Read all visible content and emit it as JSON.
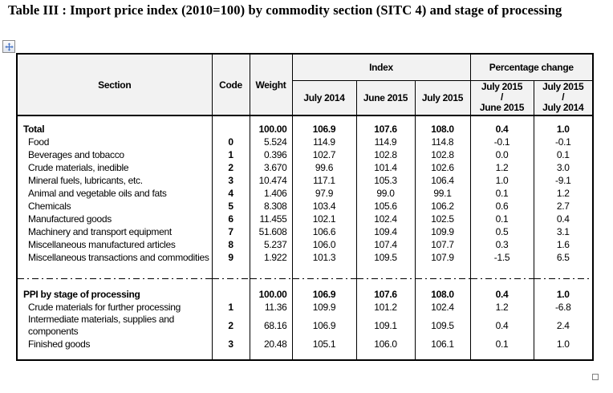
{
  "title": "Table III : Import price index (2010=100) by commodity section (SITC 4) and stage of processing",
  "colors": {
    "border": "#000000",
    "header_bg": "#f2f2f2",
    "accent_blue": "#4472c4",
    "text": "#000000",
    "background": "#ffffff"
  },
  "icons": {
    "move_handle": "move-icon",
    "resize_handle": "resize-handle-icon"
  },
  "table": {
    "headers": {
      "section": "Section",
      "code": "Code",
      "weight": "Weight",
      "index_group": "Index",
      "pct_group": "Percentage change",
      "index_cols": [
        "July 2014",
        "June 2015",
        "July 2015"
      ],
      "pct_cols": [
        {
          "top": "July 2015",
          "mid": "/",
          "bottom": "June 2015"
        },
        {
          "top": "July 2015",
          "mid": "/",
          "bottom": "July 2014"
        }
      ]
    },
    "sections": [
      {
        "rows": [
          {
            "section": "Total",
            "code": "",
            "weight": "100.00",
            "jul2014": "106.9",
            "jun2015": "107.6",
            "jul2015": "108.0",
            "chg_mom": "0.4",
            "chg_yoy": "1.0",
            "bold": true
          },
          {
            "section": "Food",
            "code": "0",
            "weight": "5.524",
            "jul2014": "114.9",
            "jun2015": "114.9",
            "jul2015": "114.8",
            "chg_mom": "-0.1",
            "chg_yoy": "-0.1",
            "bold": false
          },
          {
            "section": "Beverages and tobacco",
            "code": "1",
            "weight": "0.396",
            "jul2014": "102.7",
            "jun2015": "102.8",
            "jul2015": "102.8",
            "chg_mom": "0.0",
            "chg_yoy": "0.1",
            "bold": false
          },
          {
            "section": "Crude materials, inedible",
            "code": "2",
            "weight": "3.670",
            "jul2014": "99.6",
            "jun2015": "101.4",
            "jul2015": "102.6",
            "chg_mom": "1.2",
            "chg_yoy": "3.0",
            "bold": false
          },
          {
            "section": "Mineral fuels, lubricants, etc.",
            "code": "3",
            "weight": "10.474",
            "jul2014": "117.1",
            "jun2015": "105.3",
            "jul2015": "106.4",
            "chg_mom": "1.0",
            "chg_yoy": "-9.1",
            "bold": false
          },
          {
            "section": "Animal and vegetable oils and fats",
            "code": "4",
            "weight": "1.406",
            "jul2014": "97.9",
            "jun2015": "99.0",
            "jul2015": "99.1",
            "chg_mom": "0.1",
            "chg_yoy": "1.2",
            "bold": false
          },
          {
            "section": "Chemicals",
            "code": "5",
            "weight": "8.308",
            "jul2014": "103.4",
            "jun2015": "105.6",
            "jul2015": "106.2",
            "chg_mom": "0.6",
            "chg_yoy": "2.7",
            "bold": false
          },
          {
            "section": "Manufactured goods",
            "code": "6",
            "weight": "11.455",
            "jul2014": "102.1",
            "jun2015": "102.4",
            "jul2015": "102.5",
            "chg_mom": "0.1",
            "chg_yoy": "0.4",
            "bold": false
          },
          {
            "section": "Machinery and transport equipment",
            "code": "7",
            "weight": "51.608",
            "jul2014": "106.6",
            "jun2015": "109.4",
            "jul2015": "109.9",
            "chg_mom": "0.5",
            "chg_yoy": "3.1",
            "bold": false
          },
          {
            "section": "Miscellaneous manufactured articles",
            "code": "8",
            "weight": "5.237",
            "jul2014": "106.0",
            "jun2015": "107.4",
            "jul2015": "107.7",
            "chg_mom": "0.3",
            "chg_yoy": "1.6",
            "bold": false
          },
          {
            "section": "Miscellaneous transactions and commodities",
            "code": "9",
            "weight": "1.922",
            "jul2014": "101.3",
            "jun2015": "109.5",
            "jul2015": "107.9",
            "chg_mom": "-1.5",
            "chg_yoy": "6.5",
            "bold": false
          }
        ]
      },
      {
        "rows": [
          {
            "section": "PPI by stage of processing",
            "code": "",
            "weight": "100.00",
            "jul2014": "106.9",
            "jun2015": "107.6",
            "jul2015": "108.0",
            "chg_mom": "0.4",
            "chg_yoy": "1.0",
            "bold": true
          },
          {
            "section": "Crude materials for further processing",
            "code": "1",
            "weight": "11.36",
            "jul2014": "109.9",
            "jun2015": "101.2",
            "jul2015": "102.4",
            "chg_mom": "1.2",
            "chg_yoy": "-6.8",
            "bold": false
          },
          {
            "section": "Intermediate materials, supplies and components",
            "code": "2",
            "weight": "68.16",
            "jul2014": "106.9",
            "jun2015": "109.1",
            "jul2015": "109.5",
            "chg_mom": "0.4",
            "chg_yoy": "2.4",
            "bold": false
          },
          {
            "section": "Finished goods",
            "code": "3",
            "weight": "20.48",
            "jul2014": "105.1",
            "jun2015": "106.0",
            "jul2015": "106.1",
            "chg_mom": "0.1",
            "chg_yoy": "1.0",
            "bold": false
          }
        ]
      }
    ]
  }
}
